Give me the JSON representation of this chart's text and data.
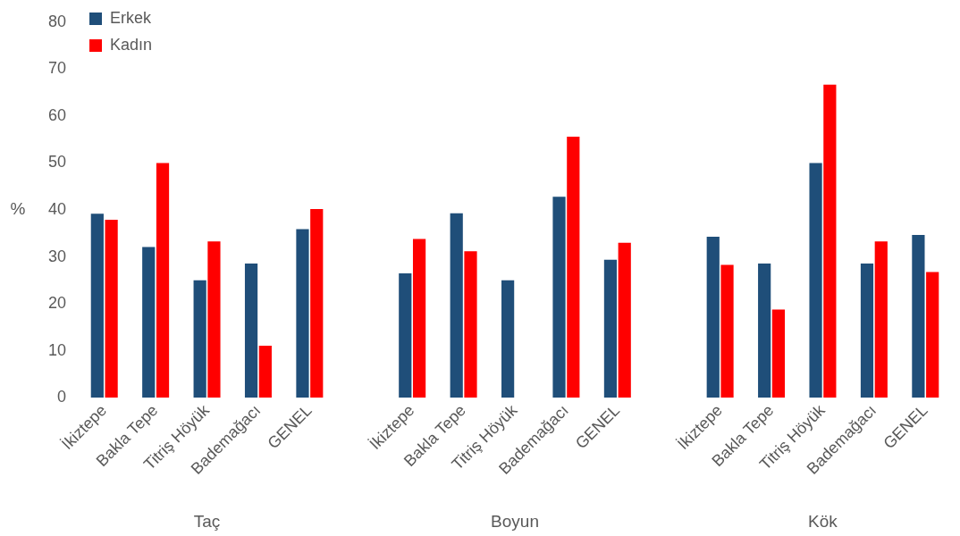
{
  "chart_data": {
    "type": "bar",
    "ylabel": "%",
    "categories": [
      "İkiztepe",
      "Bakla Tepe",
      "Titriş Höyük",
      "Bademağacı",
      "GENEL",
      null,
      "İkiztepe",
      "Bakla Tepe",
      "Titriş Höyük",
      "Bademağacı",
      "GENEL",
      null,
      "İkiztepe",
      "Bakla Tepe",
      "Titriş Höyük",
      "Bademağacı",
      "GENEL"
    ],
    "series": [
      {
        "name": "Erkek",
        "color": "#1f4e79",
        "values": [
          39.2,
          32.1,
          25,
          28.6,
          35.9,
          null,
          26.5,
          39.3,
          25,
          42.8,
          29.4,
          null,
          34.3,
          28.6,
          50,
          28.6,
          34.7
        ]
      },
      {
        "name": "Kadın",
        "color": "#ff0000",
        "values": [
          37.9,
          50,
          33.3,
          11.1,
          40.2,
          null,
          33.8,
          31.2,
          null,
          55.6,
          33,
          null,
          28.3,
          18.8,
          66.7,
          33.3,
          26.8
        ]
      }
    ],
    "ylim": [
      0,
      80
    ],
    "yticks": [
      0,
      10,
      20,
      30,
      40,
      50,
      60,
      70,
      80
    ],
    "grid": false,
    "legend": "top left",
    "annotations": [
      "Taç",
      "Boyun",
      "Kök"
    ]
  }
}
